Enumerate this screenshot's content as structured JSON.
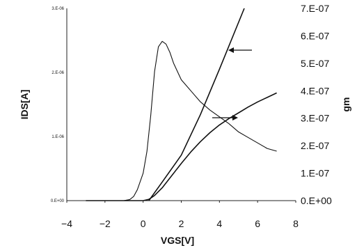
{
  "chart_data": {
    "type": "line",
    "xlabel": "VGS[V]",
    "ylabel_left": "IDS[A]",
    "ylabel_right": "gm",
    "xlim": [
      -4,
      8
    ],
    "xticks": [
      "-4",
      "-2",
      "0",
      "2",
      "4",
      "6",
      "8"
    ],
    "ylim_left": [
      0,
      3e-06
    ],
    "yticks_left": [
      "0.E+00",
      "1.E-06",
      "2.E-06",
      "3.E-06"
    ],
    "ylim_right": [
      0,
      7e-07
    ],
    "yticks_right": [
      "0.E+00",
      "1.E-07",
      "2.E-07",
      "3.E-07",
      "4.E-07",
      "5.E-07",
      "6.E-07",
      "7.E-07"
    ],
    "grid": false,
    "series": [
      {
        "axis": "left",
        "x": [
          -3.0,
          -1.0,
          0.0,
          0.3,
          0.6,
          1.0,
          1.5,
          2.0,
          2.5,
          3.0,
          3.5,
          4.0,
          4.5,
          5.0,
          5.5,
          6.0,
          6.5,
          7.0
        ],
        "values": [
          0,
          0,
          0,
          2e-08,
          8e-08,
          2e-07,
          3.9e-07,
          5.8e-07,
          7.6e-07,
          9.2e-07,
          1.06e-06,
          1.18e-06,
          1.28e-06,
          1.37e-06,
          1.46e-06,
          1.54e-06,
          1.61e-06,
          1.68e-06
        ]
      },
      {
        "axis": "right",
        "x": [
          -3.0,
          -1.0,
          -0.7,
          -0.5,
          -0.3,
          0.0,
          0.2,
          0.4,
          0.6,
          0.8,
          1.0,
          1.2,
          1.4,
          1.6,
          2.0,
          2.5,
          3.0,
          3.5,
          4.0,
          4.5,
          5.0,
          5.5,
          6.0,
          6.5,
          7.0
        ],
        "values": [
          0,
          2e-10,
          4e-09,
          1.5e-08,
          4e-08,
          1e-07,
          1.8e-07,
          3.1e-07,
          4.7e-07,
          5.6e-07,
          5.8e-07,
          5.7e-07,
          5.4e-07,
          5e-07,
          4.4e-07,
          4e-07,
          3.6e-07,
          3.3e-07,
          3.05e-07,
          2.8e-07,
          2.5e-07,
          2.3e-07,
          2.1e-07,
          1.9e-07,
          1.8e-07
        ]
      },
      {
        "axis": "left",
        "x": [
          0.3,
          1.0,
          2.0,
          3.0,
          4.0,
          5.3
        ],
        "values": [
          0,
          2.9e-07,
          7.1e-07,
          1.34e-06,
          2.05e-06,
          3e-06
        ]
      }
    ]
  }
}
